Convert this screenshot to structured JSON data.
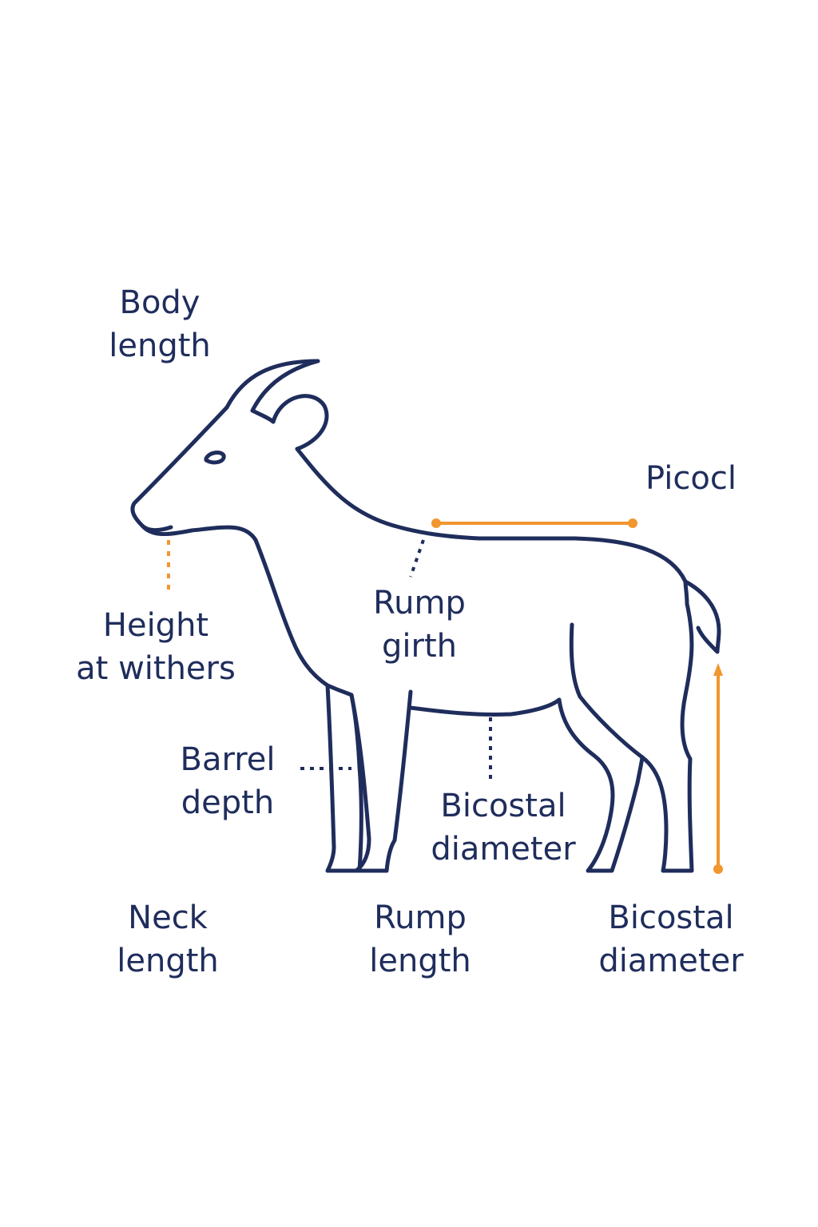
{
  "labels": {
    "body_length": [
      "Body",
      "length"
    ],
    "picocl": [
      "Picocl"
    ],
    "height_at_withers": [
      "Height",
      "at withers"
    ],
    "rump_girth": [
      "Rump",
      "girth"
    ],
    "barrel_depth": [
      "Barrel",
      "depth"
    ],
    "bicostal_diameter_mid": [
      "Bicostal",
      "diameter"
    ],
    "neck_length": [
      "Neck",
      "length"
    ],
    "rump_length": [
      "Rump",
      "length"
    ],
    "bicostal_diameter_right": [
      "Bicostal",
      "diameter"
    ]
  },
  "colors": {
    "outline": "#1f2d5c",
    "accent": "#f2962f",
    "background": "#ffffff"
  }
}
